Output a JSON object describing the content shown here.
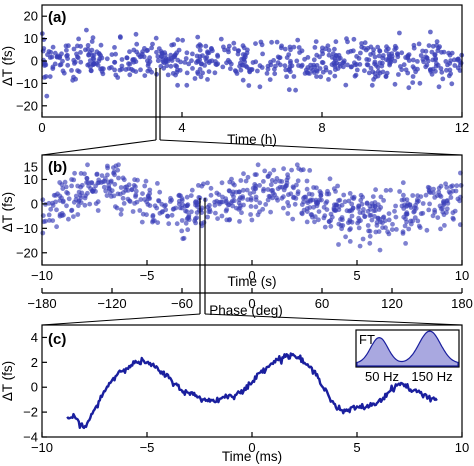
{
  "chart_data": [
    {
      "panel_label": "(a)",
      "type": "scatter",
      "xlabel": "Time (h)",
      "ylabel": "ΔT (fs)",
      "xlim": [
        0,
        12
      ],
      "ylim": [
        -25,
        25
      ],
      "xticks": [
        "0",
        "4",
        "8",
        "12"
      ],
      "yticks": [
        "20",
        "10",
        "0",
        "−10",
        "−20"
      ],
      "x_tick_values": [
        0,
        4,
        8,
        12
      ],
      "y_tick_values": [
        20,
        10,
        0,
        -10,
        -20
      ],
      "marker_color": "#3a3fb8",
      "series": [
        {
          "values_description_x_range": [
            0,
            12
          ],
          "mean": 0,
          "spread": 4.5,
          "n": 600
        }
      ]
    },
    {
      "panel_label": "(b)",
      "type": "scatter",
      "xlabel": "Time (s)",
      "ylabel": "ΔT (fs)",
      "xlim": [
        -10,
        10
      ],
      "ylim": [
        -25,
        20
      ],
      "xticks": [
        "−10",
        "−5",
        "0",
        "5",
        "10"
      ],
      "yticks": [
        "10",
        "0",
        "−10",
        "−20"
      ],
      "x_tick_values": [
        -10,
        -5,
        0,
        5,
        10
      ],
      "y_tick_values": [
        10,
        0,
        -10,
        -20
      ],
      "extra_top_ticks": [
        "15"
      ],
      "x2label": "Phase (deg)",
      "x2lim": [
        -180,
        180
      ],
      "x2ticks": [
        "−180",
        "−120",
        "−60",
        "0",
        "60",
        "120",
        "180"
      ],
      "x2_tick_values": [
        -180,
        -120,
        -60,
        0,
        60,
        120,
        180
      ],
      "marker_color": "#3a3fb8",
      "series": [
        {
          "model": "oscillation",
          "x": [
            -10,
            -9,
            -8,
            -7,
            -6,
            -5,
            -4,
            -3,
            -2,
            -1,
            0,
            1,
            2,
            3,
            4,
            5,
            6,
            7,
            8,
            9,
            10
          ],
          "y": [
            -3,
            1,
            6,
            8,
            5,
            1,
            -3,
            -5,
            -2,
            2,
            4,
            6,
            4,
            1,
            -2,
            -5,
            -6,
            -4,
            -1,
            1,
            2
          ],
          "spread": 5,
          "n": 700
        }
      ]
    },
    {
      "panel_label": "(c)",
      "type": "line",
      "xlabel": "Time (ms)",
      "ylabel": "ΔT (fs)",
      "xlim": [
        -10,
        10
      ],
      "ylim": [
        -4,
        5
      ],
      "xticks": [
        "−10",
        "−5",
        "0",
        "5",
        "10"
      ],
      "yticks": [
        "4",
        "2",
        "0",
        "−2",
        "−4"
      ],
      "x_tick_values": [
        -10,
        -5,
        0,
        5,
        10
      ],
      "y_tick_values": [
        4,
        2,
        0,
        -2,
        -4
      ],
      "line_color": "#1a1f9e",
      "series": [
        {
          "x": [
            -8.8,
            -8.4,
            -8.0,
            -7.6,
            -7.2,
            -6.8,
            -6.4,
            -6.0,
            -5.6,
            -5.2,
            -4.8,
            -4.4,
            -4.0,
            -3.6,
            -3.2,
            -2.8,
            -2.4,
            -2.0,
            -1.6,
            -1.2,
            -0.8,
            -0.4,
            0.0,
            0.4,
            0.8,
            1.2,
            1.6,
            2.0,
            2.4,
            2.8,
            3.2,
            3.6,
            4.0,
            4.4,
            4.8,
            5.2,
            5.6,
            6.0,
            6.4,
            6.8,
            7.2,
            7.6,
            8.0,
            8.4,
            8.8
          ],
          "y": [
            -2.4,
            -2.5,
            -3.3,
            -2.2,
            -0.8,
            0.3,
            1.1,
            1.6,
            1.9,
            2.1,
            1.8,
            1.3,
            0.8,
            0.2,
            -0.4,
            -0.6,
            -0.9,
            -1.1,
            -1.0,
            -0.7,
            -0.6,
            -0.3,
            0.4,
            1.2,
            1.8,
            2.2,
            2.5,
            2.6,
            2.1,
            1.5,
            0.7,
            -0.5,
            -1.6,
            -2.0,
            -1.7,
            -1.6,
            -1.5,
            -1.2,
            -0.6,
            0.1,
            0.3,
            -0.3,
            -0.4,
            -0.8,
            -1.0
          ]
        }
      ],
      "inset": {
        "label": "FT",
        "ticks": [
          "50 Hz",
          "150 Hz"
        ],
        "fill_color": "#a9a8e0",
        "line_color": "#1a1f9e"
      }
    }
  ]
}
